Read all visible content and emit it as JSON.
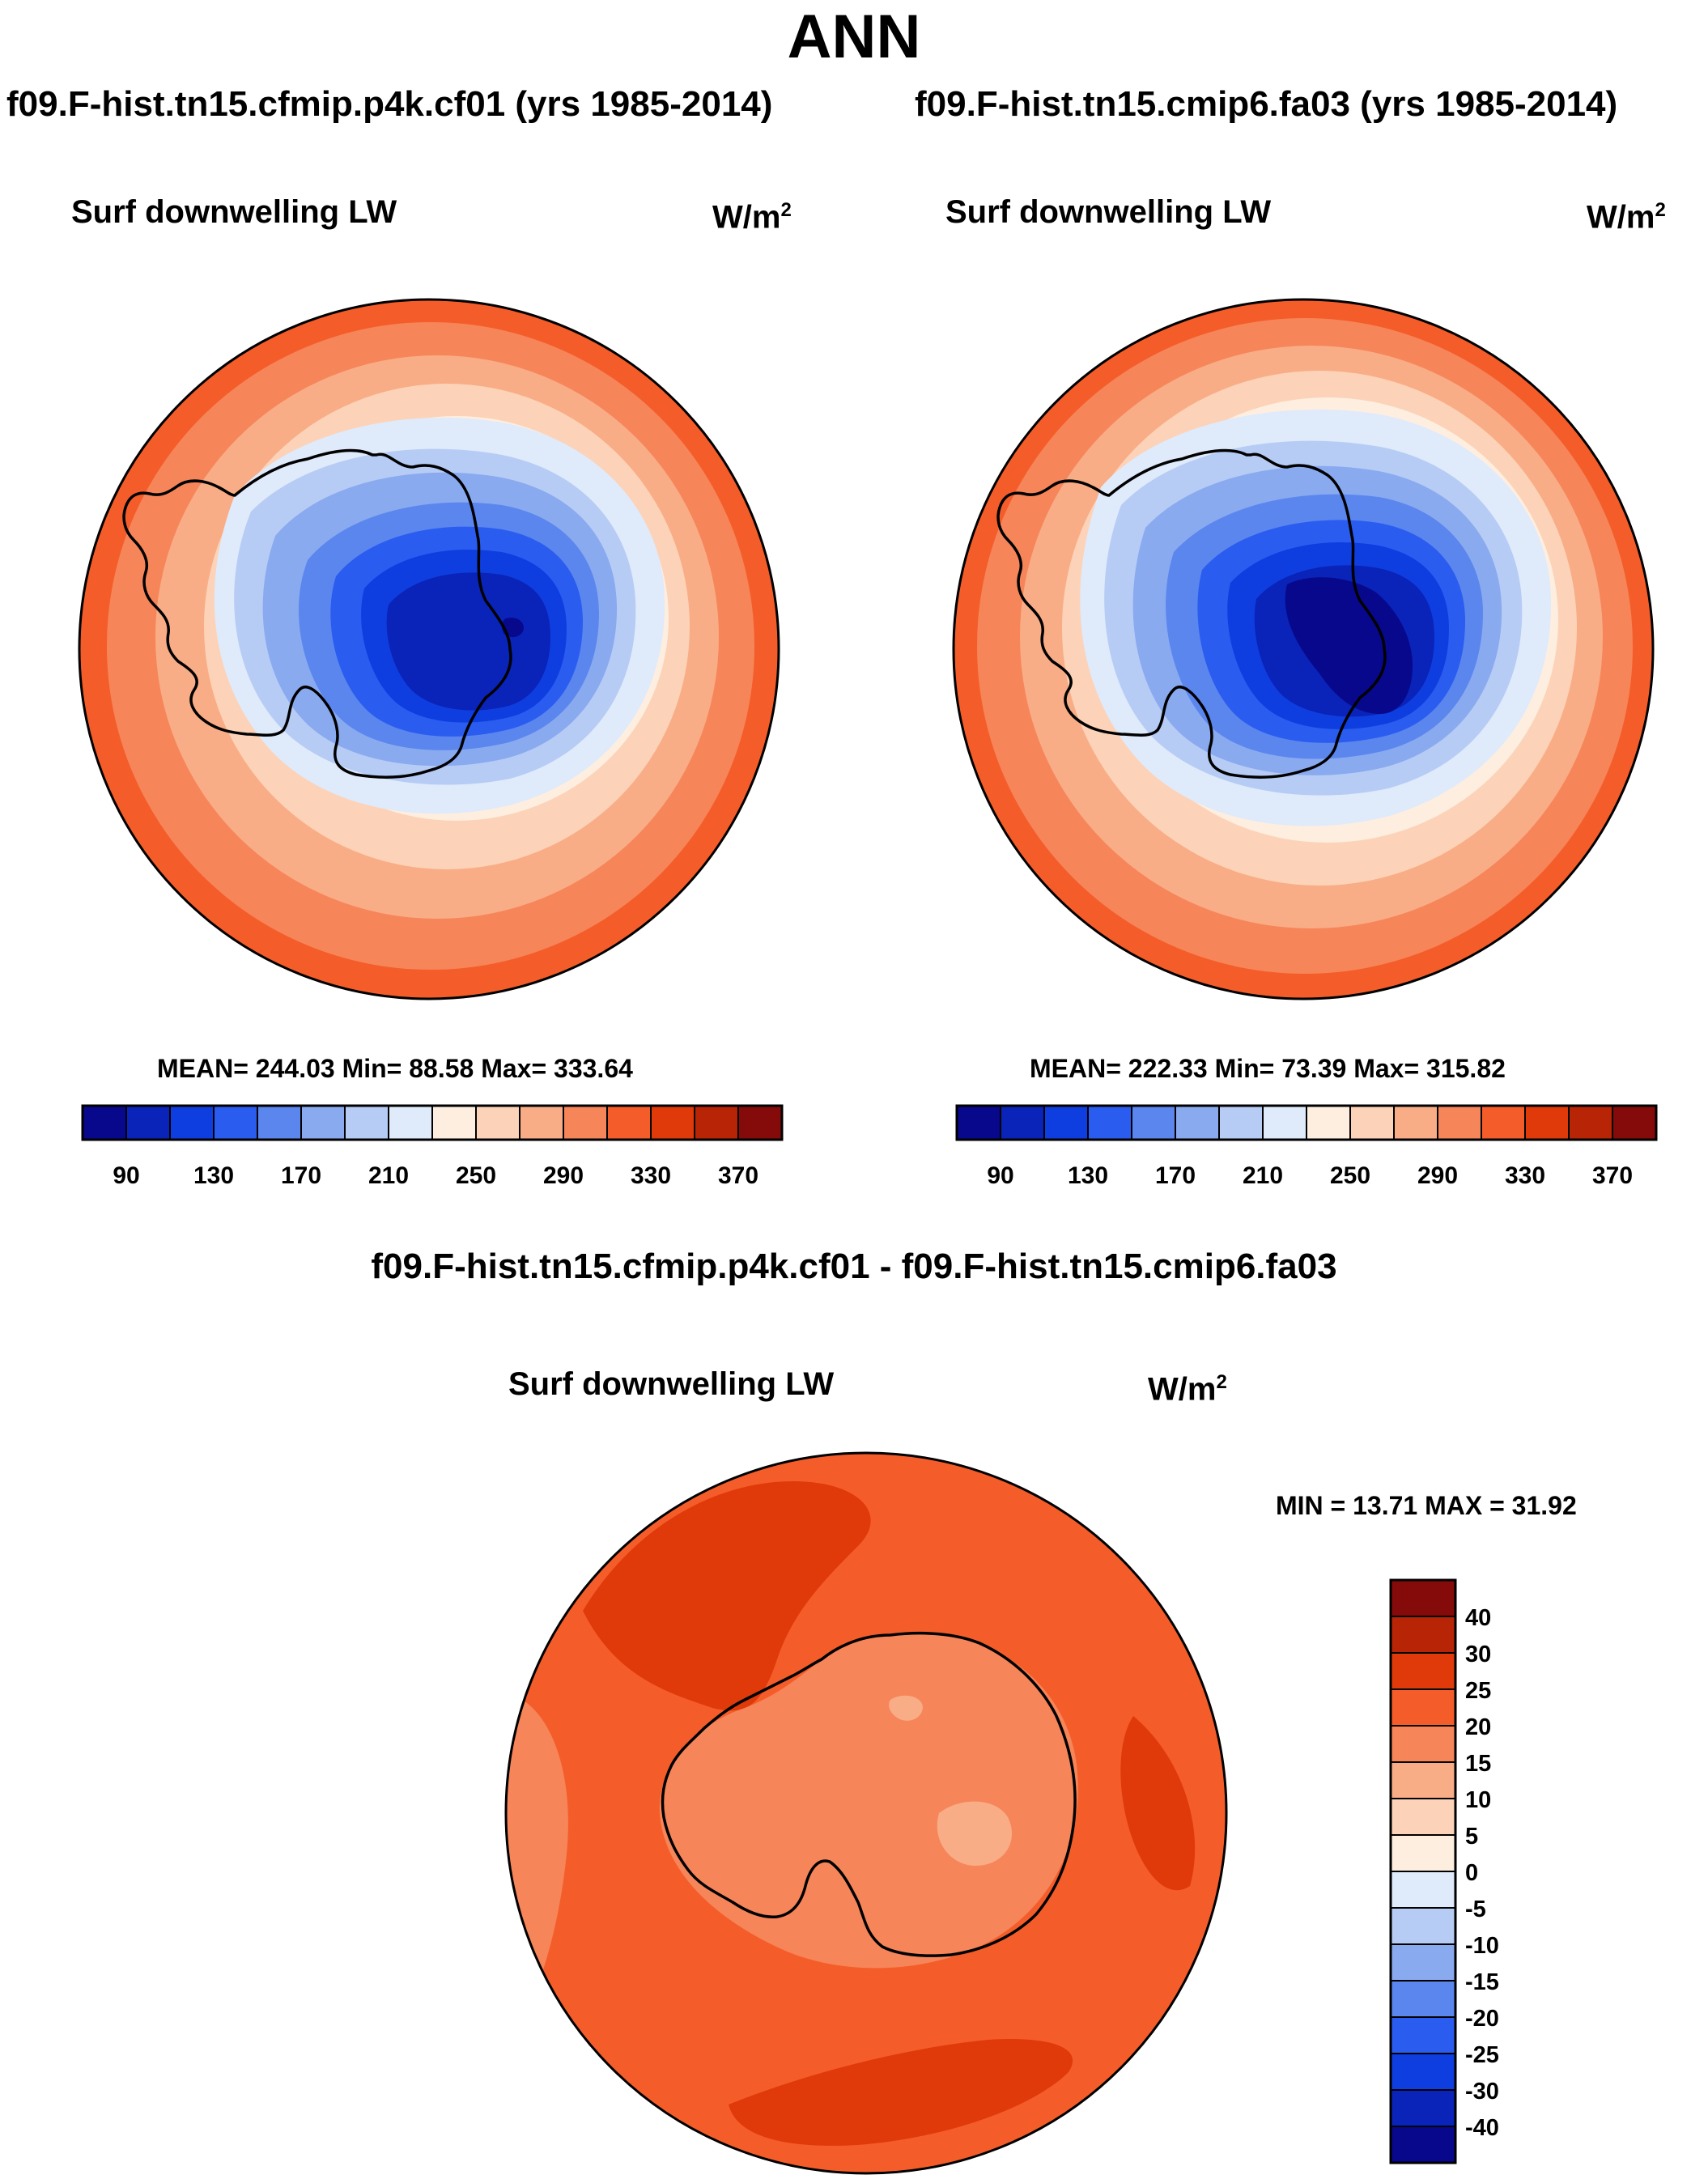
{
  "title": "ANN",
  "panels": [
    {
      "case": "f09.F-hist.tn15.cfmip.p4k.cf01 (yrs 1985-2014)",
      "variable": "Surf downwelling LW",
      "units_base": "W/m",
      "units_exp": "2",
      "stats": "MEAN= 244.03  Min=  88.58  Max= 333.64"
    },
    {
      "case": "f09.F-hist.tn15.cmip6.fa03 (yrs 1985-2014)",
      "variable": "Surf downwelling LW",
      "units_base": "W/m",
      "units_exp": "2",
      "stats": "MEAN= 222.33  Min=  73.39  Max= 315.82"
    }
  ],
  "diff_panel": {
    "title": "f09.F-hist.tn15.cfmip.p4k.cf01 - f09.F-hist.tn15.cmip6.fa03",
    "variable": "Surf downwelling LW",
    "units_base": "W/m",
    "units_exp": "2",
    "stats": "MIN =  13.71 MAX =  31.92"
  },
  "colorbar_main": {
    "labels": [
      "90",
      "130",
      "170",
      "210",
      "250",
      "290",
      "330",
      "370"
    ],
    "colors": [
      "#08088c",
      "#0a23b8",
      "#0f3ee0",
      "#2a5cf0",
      "#5a86ee",
      "#8aaaf0",
      "#b6ccf5",
      "#dfeafb",
      "#fdeee0",
      "#fcd3b8",
      "#f9ad86",
      "#f7855a",
      "#f45d2a",
      "#e03a0a",
      "#b82406",
      "#850a0a"
    ]
  },
  "colorbar_diff": {
    "labels": [
      "40",
      "30",
      "25",
      "20",
      "15",
      "10",
      "5",
      "0",
      "-5",
      "-10",
      "-15",
      "-20",
      "-25",
      "-30",
      "-40"
    ],
    "colors": [
      "#850a0a",
      "#b82406",
      "#e03a0a",
      "#f45d2a",
      "#f7855a",
      "#f9ad86",
      "#fcd3b8",
      "#fdeee0",
      "#dfeafb",
      "#b6ccf5",
      "#8aaaf0",
      "#5a86ee",
      "#2a5cf0",
      "#0f3ee0",
      "#0a23b8",
      "#08088c"
    ]
  },
  "colors": {
    "ring1": "#f45d2a",
    "ring2": "#f7855a",
    "ring3": "#f9ad86",
    "ring4": "#fcd3b8",
    "ring5": "#fdeee0",
    "ring6": "#dfeafb",
    "ring7": "#b6ccf5",
    "ring8": "#8aaaf0",
    "ring9": "#5a86ee",
    "ring10": "#2a5cf0",
    "ring11": "#0f3ee0",
    "ring12": "#0a23b8",
    "ring13": "#08088c",
    "diff_base": "#f45d2a",
    "diff_dark": "#e03a0a",
    "diff_mid": "#f7855a",
    "diff_light": "#f9ad86"
  }
}
